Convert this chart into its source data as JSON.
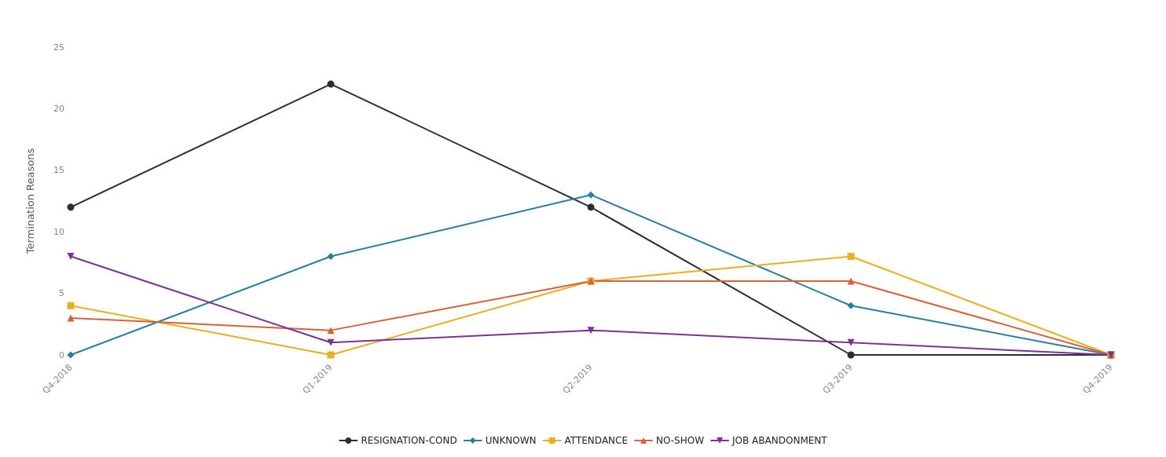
{
  "chart_data": {
    "type": "line",
    "ylabel": "Termination Reasons",
    "categories": [
      "Q4-2018",
      "Q1-2019",
      "Q2-2019",
      "Q3-2019",
      "Q4-2019"
    ],
    "series": [
      {
        "name": "RESIGNATION-COND",
        "color": "#2b2f33",
        "marker": "circle",
        "values": [
          12,
          22,
          12,
          0,
          0
        ]
      },
      {
        "name": "UNKNOWN",
        "color": "#2a7f9e",
        "marker": "diamond",
        "values": [
          0,
          8,
          13,
          4,
          0
        ]
      },
      {
        "name": "ATTENDANCE",
        "color": "#e8b020",
        "marker": "square",
        "values": [
          4,
          0,
          6,
          8,
          0
        ]
      },
      {
        "name": "NO-SHOW",
        "color": "#d4623a",
        "marker": "triangle",
        "values": [
          3,
          2,
          6,
          6,
          0
        ]
      },
      {
        "name": "JOB ABANDONMENT",
        "color": "#7b3294",
        "marker": "triangle-down",
        "values": [
          8,
          1,
          2,
          1,
          0
        ]
      }
    ],
    "ylim": [
      0,
      25
    ],
    "yticks": [
      0,
      5,
      10,
      15,
      20,
      25
    ],
    "legend": "bottom"
  }
}
